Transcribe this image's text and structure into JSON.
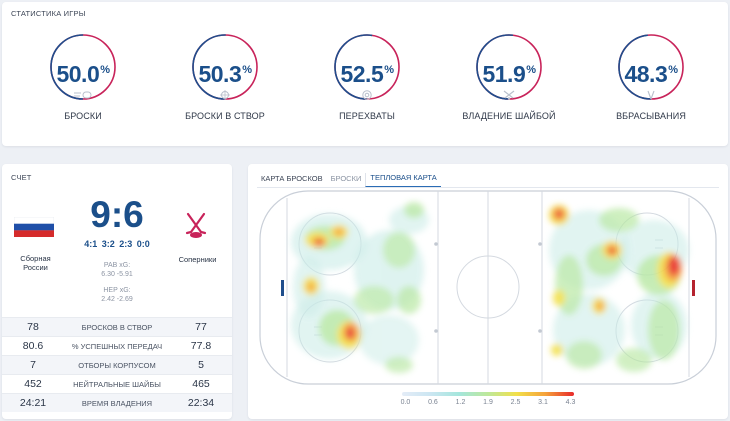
{
  "game_stats": {
    "title": "СТАТИСТИКА ИГРЫ",
    "items": [
      {
        "value": "50.0",
        "unit": "%",
        "label": "БРОСКИ",
        "icon": "shot-icon",
        "percent": 50.0
      },
      {
        "value": "50.3",
        "unit": "%",
        "label": "БРОСКИ В СТВОР",
        "icon": "target-icon",
        "percent": 50.3
      },
      {
        "value": "52.5",
        "unit": "%",
        "label": "ПЕРЕХВАТЫ",
        "icon": "interception-icon",
        "percent": 52.5
      },
      {
        "value": "51.9",
        "unit": "%",
        "label": "ВЛАДЕНИЕ ШАЙБОЙ",
        "icon": "sticks-icon",
        "percent": 51.9
      },
      {
        "value": "48.3",
        "unit": "%",
        "label": "ВБРАСЫВАНИЯ",
        "icon": "faceoff-icon",
        "percent": 48.3
      }
    ],
    "colors": {
      "left": "#1f4e8c",
      "right": "#c8235a"
    }
  },
  "score": {
    "title": "СЧЕТ",
    "home": {
      "name_line1": "Сборная",
      "name_line2": "России",
      "icon": "russia-flag-icon"
    },
    "away": {
      "name": "Соперники",
      "icon": "crossed-sticks-icon"
    },
    "main": "9:6",
    "periods": [
      "4:1",
      "3:2",
      "2:3",
      "0:0"
    ],
    "xg_home_label": "РАВ xG:",
    "xg_home_value": "6.30 -5.91",
    "xg_away_label": "НЕР xG:",
    "xg_away_value": "2.42 -2.69",
    "rows": [
      {
        "home": "78",
        "label": "БРОСКОВ В СТВОР",
        "away": "77"
      },
      {
        "home": "80.6",
        "label": "% УСПЕШНЫХ ПЕРЕДАЧ",
        "away": "77.8"
      },
      {
        "home": "7",
        "label": "ОТБОРЫ КОРПУСОМ",
        "away": "5"
      },
      {
        "home": "452",
        "label": "НЕЙТРАЛЬНЫЕ ШАЙБЫ",
        "away": "465"
      },
      {
        "home": "24:21",
        "label": "ВРЕМЯ ВЛАДЕНИЯ",
        "away": "22:34"
      }
    ]
  },
  "shot_map": {
    "title": "КАРТА БРОСКОВ",
    "tabs": [
      "БРОСКИ",
      "ТЕПЛОВАЯ КАРТА"
    ],
    "active_tab": "ТЕПЛОВАЯ КАРТА",
    "legend": [
      "0.0",
      "0.6",
      "1.2",
      "1.9",
      "2.5",
      "3.1",
      "4.3"
    ],
    "colors": {
      "rink_line": "#c9cfd8",
      "red_line": "#b5232f",
      "blue_mark": "#1f4e8c"
    }
  }
}
